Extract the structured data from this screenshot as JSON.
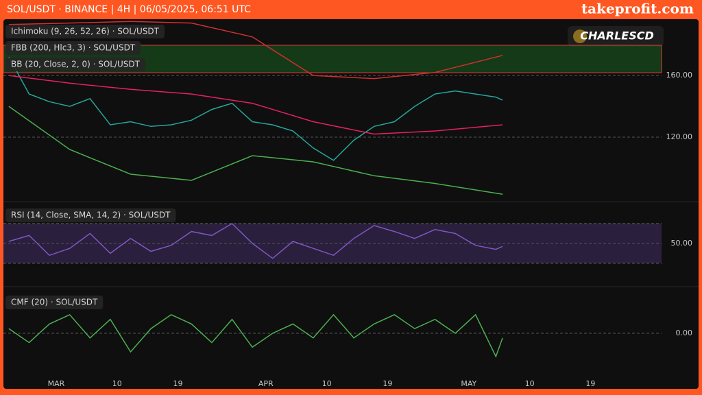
{
  "header": {
    "title": "SOL/USDT · BINANCE | 4H | 06/05/2025, 06:51 UTC",
    "brand": "takeprofit.com",
    "watermark": "CHARLESCD"
  },
  "chart_data": [
    {
      "type": "line",
      "legend": [
        "Ichimoku (9, 26, 52, 26) · SOL/USDT",
        "FBB (200, Hlc3, 3) · SOL/USDT",
        "BB (20, Close, 2, 0) · SOL/USDT"
      ],
      "xlim": [
        52.2,
        149.5
      ],
      "ylim": [
        80,
        195.6
      ],
      "yticks": [
        {
          "value": 160,
          "label": "160.00"
        },
        {
          "value": 120,
          "label": "120.00"
        }
      ],
      "zone": [
        161.8,
        179.6
      ],
      "zone_color": "#1b5e20",
      "series": [
        {
          "color": "#26a69a",
          "x": [
            53,
            56,
            59,
            62,
            65,
            68,
            71,
            74,
            77,
            80,
            83,
            86,
            89,
            92,
            95,
            98,
            101,
            104,
            107,
            110,
            113,
            116,
            119,
            122,
            125,
            126
          ],
          "values": [
            172,
            148,
            143,
            140,
            145,
            128,
            130,
            127,
            128,
            131,
            138,
            142,
            130,
            128,
            124,
            113,
            105,
            118,
            127,
            130,
            140,
            148,
            150,
            148,
            146,
            144
          ]
        },
        {
          "color": "#d32f2f",
          "x": [
            53,
            62,
            71,
            80,
            89,
            98,
            107,
            116,
            126
          ],
          "values": [
            193,
            194,
            195,
            194,
            185,
            160,
            158,
            162,
            173
          ]
        },
        {
          "color": "#e91e63",
          "x": [
            53,
            62,
            71,
            80,
            89,
            98,
            107,
            116,
            126
          ],
          "values": [
            160,
            155,
            151,
            148,
            142,
            130,
            122,
            124,
            128
          ]
        },
        {
          "color": "#4caf50",
          "x": [
            53,
            62,
            71,
            80,
            89,
            98,
            107,
            116,
            126
          ],
          "values": [
            140,
            112,
            96,
            92,
            108,
            104,
            95,
            90,
            83
          ]
        }
      ]
    },
    {
      "type": "line",
      "legend": [
        "RSI (14, Close, SMA, 14, 2) · SOL/USDT"
      ],
      "xlim": [
        52.2,
        149.5
      ],
      "ylim": [
        12,
        89.3
      ],
      "yticks": [
        {
          "value": 50,
          "label": "50.00"
        }
      ],
      "bands": [
        30,
        70
      ],
      "band_color": "#2a1f3d",
      "series": [
        {
          "color": "#7e57c2",
          "x": [
            53,
            56,
            59,
            62,
            65,
            68,
            71,
            74,
            77,
            80,
            83,
            86,
            89,
            92,
            95,
            98,
            101,
            104,
            107,
            110,
            113,
            116,
            119,
            122,
            125,
            126
          ],
          "values": [
            52,
            58,
            38,
            45,
            60,
            40,
            55,
            42,
            48,
            62,
            58,
            70,
            50,
            35,
            52,
            45,
            38,
            55,
            68,
            62,
            55,
            64,
            60,
            48,
            44,
            47
          ]
        }
      ]
    },
    {
      "type": "line",
      "legend": [
        "CMF (20) · SOL/USDT"
      ],
      "xlim": [
        52.2,
        149.5
      ],
      "ylim": [
        -0.45,
        0.45
      ],
      "yticks": [
        {
          "value": 0,
          "label": "0.00"
        }
      ],
      "xticks": [
        {
          "value": 60,
          "label": "MAR"
        },
        {
          "value": 69,
          "label": "10"
        },
        {
          "value": 78,
          "label": "19"
        },
        {
          "value": 91,
          "label": "APR"
        },
        {
          "value": 100,
          "label": "10"
        },
        {
          "value": 109,
          "label": "19"
        },
        {
          "value": 121,
          "label": "MAY"
        },
        {
          "value": 130,
          "label": "10"
        },
        {
          "value": 139,
          "label": "19"
        }
      ],
      "series": [
        {
          "color": "#4caf50",
          "x": [
            53,
            56,
            59,
            62,
            65,
            68,
            71,
            74,
            77,
            80,
            83,
            86,
            89,
            92,
            95,
            98,
            101,
            104,
            107,
            110,
            113,
            116,
            119,
            122,
            125,
            126
          ],
          "values": [
            0.05,
            -0.1,
            0.1,
            0.2,
            -0.05,
            0.15,
            -0.2,
            0.05,
            0.2,
            0.1,
            -0.1,
            0.15,
            -0.15,
            0.0,
            0.1,
            -0.05,
            0.2,
            -0.05,
            0.1,
            0.2,
            0.05,
            0.15,
            0.0,
            0.2,
            -0.25,
            -0.05
          ]
        }
      ]
    }
  ]
}
